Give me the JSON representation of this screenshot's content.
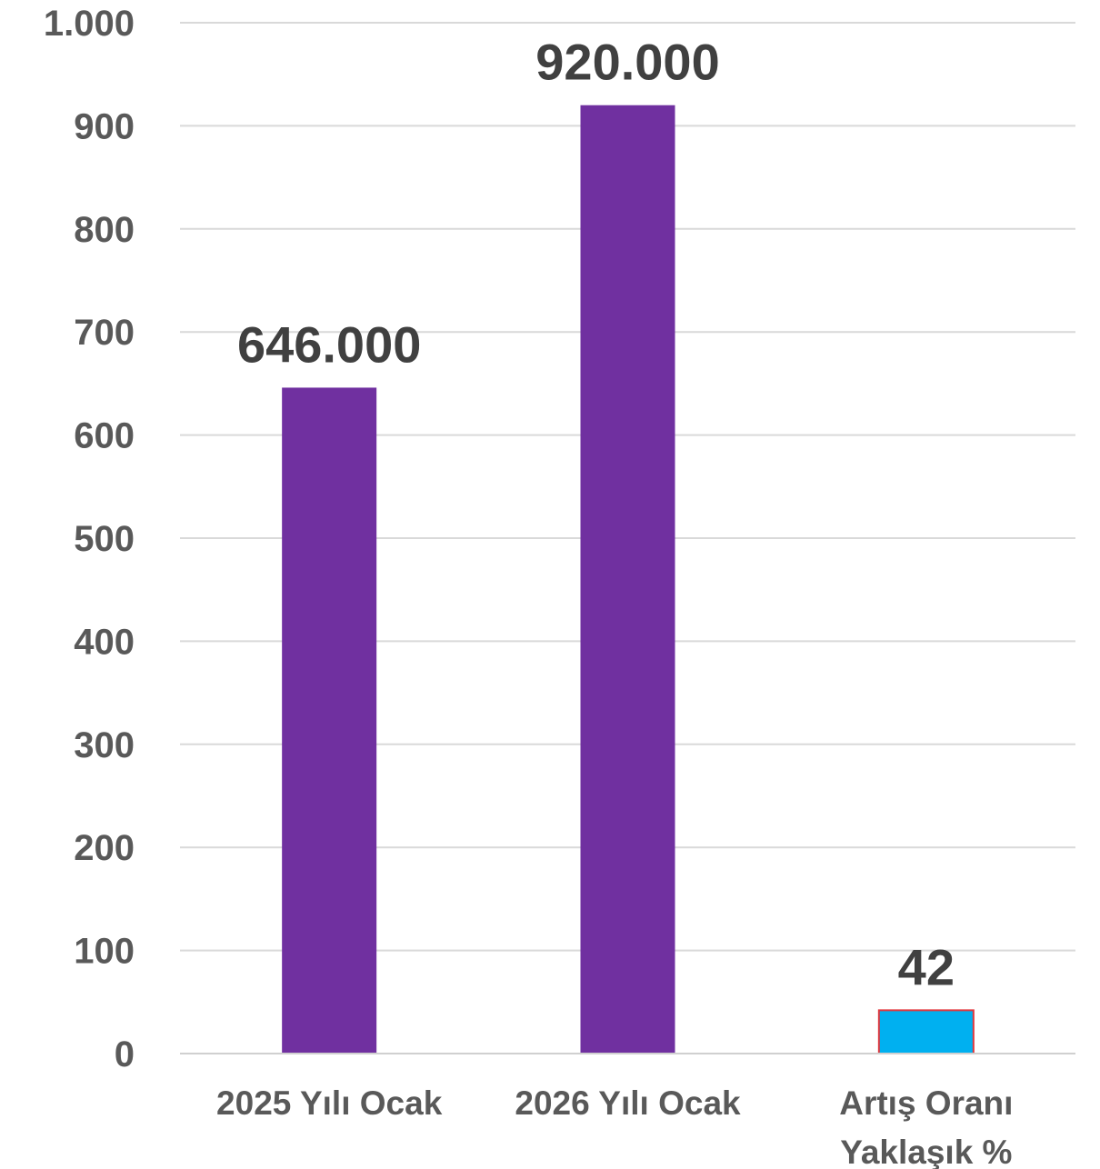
{
  "chart_data": {
    "type": "bar",
    "categories": [
      [
        "2025 Yılı Ocak"
      ],
      [
        "2026 Yılı Ocak"
      ],
      [
        "Artış Oranı",
        "Yaklaşık %"
      ]
    ],
    "values": [
      646,
      920,
      42
    ],
    "data_labels": [
      "646.000",
      "920.000",
      "42"
    ],
    "ylim": [
      0,
      1000
    ],
    "y_ticks": [
      0,
      100,
      200,
      300,
      400,
      500,
      600,
      700,
      800,
      900,
      1000
    ],
    "y_tick_labels": [
      "0",
      "100",
      "200",
      "300",
      "400",
      "500",
      "600",
      "700",
      "800",
      "900",
      "1.000"
    ],
    "grid": true,
    "legend": "none",
    "colors": {
      "bars": [
        "#7030a0",
        "#7030a0",
        "#00b0f0"
      ],
      "bar_outline": [
        "none",
        "none",
        "#e0383e"
      ]
    }
  }
}
